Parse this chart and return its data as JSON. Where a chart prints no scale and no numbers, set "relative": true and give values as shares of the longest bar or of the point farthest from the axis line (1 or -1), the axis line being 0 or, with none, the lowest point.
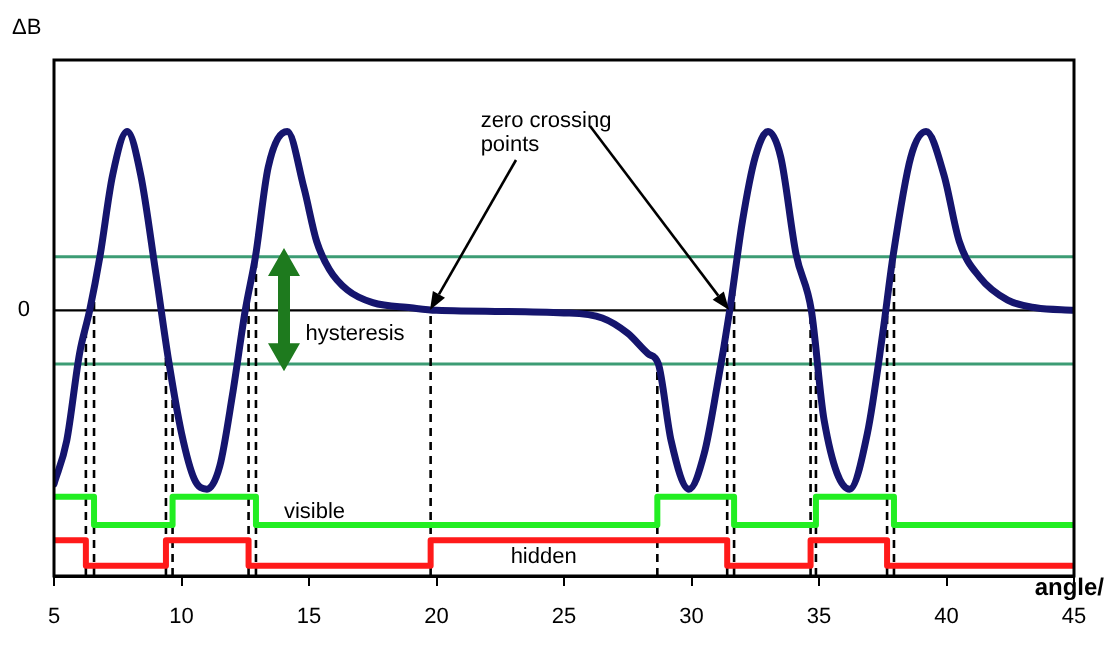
{
  "chart_data": {
    "type": "line",
    "relative": true,
    "ylabel": "ΔB",
    "xlabel": "angle/",
    "xlim": [
      5,
      45
    ],
    "xticks": [
      5,
      10,
      15,
      20,
      25,
      30,
      35,
      40,
      45
    ],
    "grid": false,
    "legend": false,
    "marker": "none",
    "series": [
      {
        "color": "#15156e",
        "x": [
          5,
          5.5,
          6,
          6.4,
          6.8,
          7.3,
          7.87,
          8.4,
          9,
          9.5,
          10,
          10.5,
          11,
          11.5,
          12,
          12.5,
          12.9,
          13.4,
          14.15,
          14.8,
          15.3,
          15.8,
          16.5,
          17.5,
          19,
          20,
          25,
          26.5,
          27.5,
          28.3,
          28.7,
          29.2,
          29.9,
          30.5,
          31,
          31.5,
          32,
          32.5,
          33,
          33.5,
          34.1,
          34.7,
          35.2,
          36.2,
          36.9,
          37.5,
          37.9,
          38.6,
          39.2,
          39.9,
          40.5,
          41.3,
          42.4,
          43.5,
          45
        ],
        "values": [
          -0.68,
          -0.51,
          -0.17,
          0,
          0.21,
          0.53,
          0.7,
          0.53,
          0.14,
          -0.2,
          -0.48,
          -0.66,
          -0.7,
          -0.61,
          -0.33,
          0,
          0.21,
          0.56,
          0.7,
          0.48,
          0.27,
          0.16,
          0.08,
          0.03,
          0.01,
          0,
          -0.01,
          -0.03,
          -0.09,
          -0.17,
          -0.21,
          -0.51,
          -0.7,
          -0.56,
          -0.3,
          0,
          0.35,
          0.6,
          0.7,
          0.6,
          0.22,
          0,
          -0.43,
          -0.7,
          -0.48,
          -0.09,
          0.21,
          0.6,
          0.7,
          0.53,
          0.27,
          0.13,
          0.04,
          0.01,
          0
        ]
      },
      {
        "type": "step",
        "name": "visible",
        "color": "#22ee22",
        "x": [
          5,
          6.57,
          9.65,
          12.92,
          28.66,
          31.67,
          34.88,
          37.94,
          45
        ],
        "values": [
          -0.73,
          -0.84,
          -0.73,
          -0.84,
          -0.73,
          -0.84,
          -0.73,
          -0.84,
          -0.84
        ]
      },
      {
        "type": "step",
        "name": "hidden",
        "color": "#ff1a1a",
        "x": [
          5,
          6.25,
          9.39,
          12.63,
          19.77,
          31.4,
          34.67,
          37.67,
          45
        ],
        "values": [
          -0.9,
          -1,
          -0.9,
          -1,
          -0.9,
          -1,
          -0.9,
          -1,
          -1
        ]
      }
    ],
    "ref_lines": [
      {
        "axis": "y",
        "value": 0,
        "label": "0",
        "color": "#000000"
      },
      {
        "axis": "y",
        "value": 0.21,
        "color": "#3c9c74"
      },
      {
        "axis": "y",
        "value": -0.21,
        "color": "#3c9c74"
      },
      {
        "axis": "x",
        "value": 6.25,
        "line_style": "dashed",
        "color": "#000000"
      },
      {
        "axis": "x",
        "value": 6.57,
        "line_style": "dashed",
        "color": "#000000"
      },
      {
        "axis": "x",
        "value": 9.39,
        "line_style": "dashed",
        "color": "#000000"
      },
      {
        "axis": "x",
        "value": 9.65,
        "line_style": "dashed",
        "color": "#000000"
      },
      {
        "axis": "x",
        "value": 12.63,
        "line_style": "dashed",
        "color": "#000000"
      },
      {
        "axis": "x",
        "value": 12.92,
        "line_style": "dashed",
        "color": "#000000"
      },
      {
        "axis": "x",
        "value": 19.77,
        "line_style": "dashed",
        "color": "#000000"
      },
      {
        "axis": "x",
        "value": 28.66,
        "line_style": "dashed",
        "color": "#000000"
      },
      {
        "axis": "x",
        "value": 31.4,
        "line_style": "dashed",
        "color": "#000000"
      },
      {
        "axis": "x",
        "value": 31.67,
        "line_style": "dashed",
        "color": "#000000"
      },
      {
        "axis": "x",
        "value": 34.67,
        "line_style": "dashed",
        "color": "#000000"
      },
      {
        "axis": "x",
        "value": 34.88,
        "line_style": "dashed",
        "color": "#000000"
      },
      {
        "axis": "x",
        "value": 37.67,
        "line_style": "dashed",
        "color": "#000000"
      },
      {
        "axis": "x",
        "value": 37.94,
        "line_style": "dashed",
        "color": "#000000"
      }
    ],
    "annotations": [
      "hysteresis",
      {
        "text": "zero crossing points",
        "x": 19.77,
        "y": 0
      }
    ]
  }
}
